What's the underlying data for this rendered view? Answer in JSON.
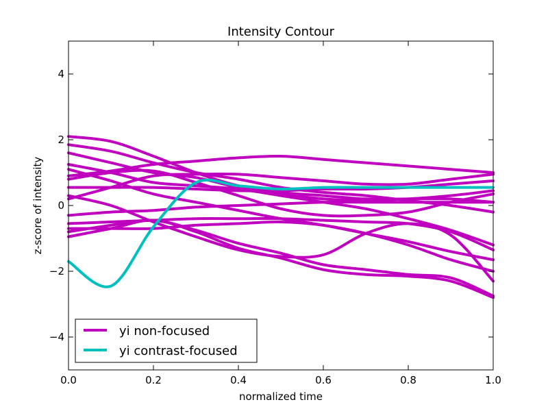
{
  "chart_data": {
    "type": "line",
    "title": "Intensity Contour",
    "xlabel": "normalized time",
    "ylabel": "z-score of intensity",
    "xlim": [
      0,
      1
    ],
    "ylim": [
      -5,
      5
    ],
    "xticks": [
      0.0,
      0.2,
      0.4,
      0.6,
      0.8,
      1.0
    ],
    "xtick_labels": [
      "0.0",
      "0.2",
      "0.4",
      "0.6",
      "0.8",
      "1.0"
    ],
    "yticks": [
      4,
      2,
      0,
      -2,
      -4
    ],
    "ytick_labels": [
      "4",
      "2",
      "0",
      "−2",
      "−4"
    ],
    "grid": false,
    "legend_position": "lower-left",
    "legend": [
      {
        "label": "yi non-focused",
        "color": "#bf00bf"
      },
      {
        "label": "yi contrast-focused",
        "color": "#00bfbf"
      }
    ],
    "x": [
      0,
      0.1,
      0.2,
      0.3,
      0.4,
      0.5,
      0.6,
      0.7,
      0.8,
      0.9,
      1.0
    ],
    "series": [
      {
        "group": "non-focused",
        "color": "#bf00bf",
        "values": [
          2.1,
          1.95,
          1.5,
          1.0,
          0.6,
          0.4,
          0.3,
          0.2,
          0.2,
          0.2,
          0.1
        ]
      },
      {
        "group": "non-focused",
        "color": "#bf00bf",
        "values": [
          1.85,
          1.65,
          1.3,
          1.0,
          0.8,
          0.55,
          0.4,
          0.3,
          0.15,
          0.0,
          -0.2
        ]
      },
      {
        "group": "non-focused",
        "color": "#bf00bf",
        "values": [
          1.6,
          1.3,
          1.0,
          0.85,
          0.55,
          0.35,
          0.2,
          0.15,
          0.2,
          0.3,
          0.45
        ]
      },
      {
        "group": "non-focused",
        "color": "#bf00bf",
        "values": [
          1.25,
          1.0,
          0.7,
          0.6,
          0.5,
          0.3,
          0.1,
          -0.1,
          -0.4,
          -0.75,
          -1.2
        ]
      },
      {
        "group": "non-focused",
        "color": "#bf00bf",
        "values": [
          1.1,
          0.75,
          0.35,
          0.1,
          -0.15,
          -0.4,
          -0.6,
          -0.85,
          -1.1,
          -1.4,
          -1.65
        ]
      },
      {
        "group": "non-focused",
        "color": "#bf00bf",
        "values": [
          0.9,
          1.05,
          1.25,
          1.35,
          1.45,
          1.5,
          1.4,
          1.3,
          1.2,
          1.1,
          1.0
        ]
      },
      {
        "group": "non-focused",
        "color": "#bf00bf",
        "values": [
          0.8,
          1.0,
          1.05,
          0.7,
          0.3,
          -0.1,
          -0.3,
          -0.3,
          -0.2,
          0.1,
          0.35
        ]
      },
      {
        "group": "non-focused",
        "color": "#bf00bf",
        "values": [
          0.55,
          0.55,
          0.55,
          0.5,
          0.45,
          0.45,
          0.5,
          0.5,
          0.55,
          0.65,
          0.75
        ]
      },
      {
        "group": "non-focused",
        "color": "#bf00bf",
        "values": [
          0.3,
          0.0,
          -0.5,
          -0.95,
          -1.35,
          -1.55,
          -1.5,
          -0.85,
          -0.55,
          -0.9,
          -2.3
        ]
      },
      {
        "group": "non-focused",
        "color": "#bf00bf",
        "values": [
          0.2,
          0.55,
          0.9,
          0.95,
          0.95,
          0.85,
          0.75,
          0.65,
          0.65,
          0.8,
          0.95
        ]
      },
      {
        "group": "non-focused",
        "color": "#bf00bf",
        "values": [
          -0.3,
          -0.2,
          -0.15,
          -0.05,
          0.0,
          0.05,
          0.1,
          0.1,
          0.1,
          0.1,
          0.1
        ]
      },
      {
        "group": "non-focused",
        "color": "#bf00bf",
        "values": [
          -0.55,
          -0.5,
          -0.45,
          -0.4,
          -0.4,
          -0.4,
          -0.45,
          -0.5,
          -0.55,
          -0.8,
          -1.35
        ]
      },
      {
        "group": "non-focused",
        "color": "#bf00bf",
        "values": [
          -0.7,
          -0.7,
          -0.7,
          -0.6,
          -0.55,
          -0.5,
          -0.6,
          -0.85,
          -1.2,
          -1.65,
          -2.0
        ]
      },
      {
        "group": "non-focused",
        "color": "#bf00bf",
        "values": [
          -0.8,
          -0.6,
          -0.45,
          -0.75,
          -1.15,
          -1.45,
          -1.8,
          -1.95,
          -2.1,
          -2.2,
          -2.75
        ]
      },
      {
        "group": "non-focused",
        "color": "#bf00bf",
        "values": [
          -0.95,
          -0.7,
          -0.45,
          -0.8,
          -1.3,
          -1.6,
          -1.95,
          -2.1,
          -2.15,
          -2.3,
          -2.8
        ]
      },
      {
        "group": "contrast-focused",
        "color": "#00bfbf",
        "values": [
          -1.7,
          -2.45,
          -0.65,
          0.7,
          0.6,
          0.5,
          0.55,
          0.55,
          0.55,
          0.55,
          0.55
        ]
      }
    ]
  }
}
